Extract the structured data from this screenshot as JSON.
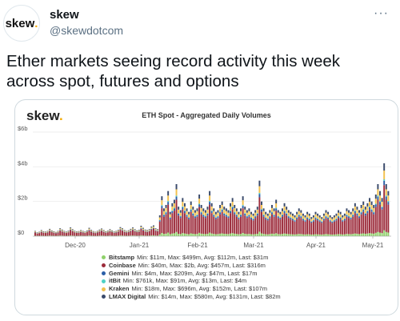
{
  "tweet": {
    "avatar_text": "skew",
    "avatar_dot": ".",
    "display_name": "skew",
    "handle": "@skewdotcom",
    "more_icon": "more-icon",
    "text": "Ether markets seeing record activity this week across spot, futures and options"
  },
  "card": {
    "logo_text": "skew",
    "logo_dot": "."
  },
  "chart_data": {
    "type": "bar",
    "title": "ETH Spot - Aggregated Daily Volumes",
    "stacked": true,
    "y_ticks": [
      "$0",
      "$2b",
      "$4b",
      "$6b"
    ],
    "ylim": [
      0,
      6
    ],
    "x_ticks": [
      "Dec-20",
      "Jan-21",
      "Feb-21",
      "Mar-21",
      "Apr-21",
      "May-21"
    ],
    "grid": true,
    "legend_position": "bottom",
    "series": [
      {
        "name": "Bitstamp",
        "stats": "Min: $11m, Max: $499m, Avg: $112m, Last: $31m",
        "color": "#8fd16a"
      },
      {
        "name": "Coinbase",
        "stats": "Min: $40m, Max: $2b, Avg: $457m, Last: $316m",
        "color": "#9c2b3b"
      },
      {
        "name": "Gemini",
        "stats": "Min: $4m, Max: $209m, Avg: $47m, Last: $17m",
        "color": "#2b5fa8"
      },
      {
        "name": "itBit",
        "stats": "Min: $761k, Max: $91m, Avg: $13m, Last: $4m",
        "color": "#4fd1c5"
      },
      {
        "name": "Kraken",
        "stats": "Min: $18m, Max: $696m, Avg: $152m, Last: $107m",
        "color": "#f2c14e"
      },
      {
        "name": "LMAX Digital",
        "stats": "Min: $14m, Max: $580m, Avg: $131m, Last: $82m",
        "color": "#3a4a6b"
      }
    ],
    "daily_totals_b": [
      0.3,
      0.22,
      0.25,
      0.35,
      0.28,
      0.26,
      0.3,
      0.42,
      0.33,
      0.28,
      0.24,
      0.3,
      0.45,
      0.38,
      0.3,
      0.26,
      0.32,
      0.5,
      0.4,
      0.31,
      0.27,
      0.29,
      0.35,
      0.3,
      0.26,
      0.33,
      0.48,
      0.36,
      0.29,
      0.25,
      0.3,
      0.38,
      0.44,
      0.35,
      0.28,
      0.32,
      0.4,
      0.33,
      0.27,
      0.3,
      0.36,
      0.52,
      0.45,
      0.35,
      0.3,
      0.34,
      0.42,
      0.5,
      0.4,
      0.33,
      0.36,
      0.6,
      0.48,
      0.38,
      0.35,
      0.4,
      0.55,
      0.62,
      0.45,
      0.4,
      1.2,
      2.3,
      1.6,
      1.8,
      2.6,
      1.4,
      1.9,
      2.1,
      3.0,
      1.7,
      1.5,
      2.2,
      1.9,
      1.6,
      1.4,
      2.0,
      1.7,
      1.5,
      1.6,
      2.4,
      1.8,
      1.6,
      1.5,
      1.7,
      2.6,
      1.9,
      1.6,
      1.4,
      1.5,
      1.8,
      2.0,
      1.7,
      1.6,
      1.5,
      1.9,
      2.2,
      1.8,
      1.6,
      1.4,
      1.6,
      2.3,
      1.7,
      1.5,
      1.6,
      1.4,
      1.3,
      1.5,
      1.7,
      3.2,
      2.0,
      1.6,
      1.4,
      1.3,
      1.5,
      1.8,
      1.6,
      2.1,
      1.5,
      1.4,
      1.6,
      1.9,
      1.7,
      1.5,
      1.4,
      1.3,
      1.2,
      1.4,
      1.6,
      1.5,
      1.3,
      1.2,
      1.4,
      1.3,
      1.1,
      1.2,
      1.4,
      1.3,
      1.2,
      1.1,
      1.3,
      1.5,
      1.4,
      1.2,
      1.1,
      1.2,
      1.3,
      1.5,
      1.4,
      1.2,
      1.3,
      1.6,
      1.5,
      1.4,
      1.6,
      1.9,
      1.7,
      1.5,
      1.8,
      2.0,
      1.7,
      1.9,
      2.2,
      2.0,
      1.8,
      2.4,
      3.0,
      2.6,
      2.2,
      4.2,
      3.0,
      2.6
    ]
  }
}
